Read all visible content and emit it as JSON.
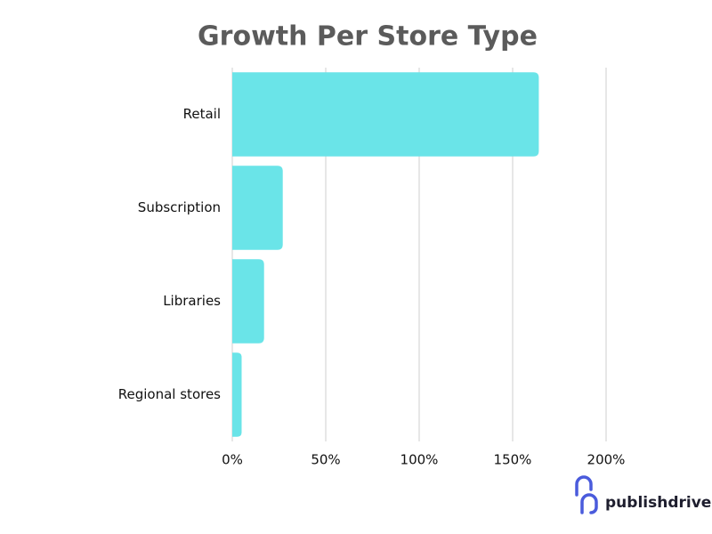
{
  "chart_data": {
    "type": "bar",
    "orientation": "horizontal",
    "title": "Growth Per Store Type",
    "categories": [
      "Retail",
      "Subscription",
      "Libraries",
      "Regional stores"
    ],
    "values": [
      164,
      27,
      17,
      5
    ],
    "color": "#6ae4e8",
    "xlim": [
      0,
      200
    ],
    "xticks": [
      {
        "value": 0,
        "label": "0%"
      },
      {
        "value": 50,
        "label": "50%"
      },
      {
        "value": 100,
        "label": "100%"
      },
      {
        "value": 150,
        "label": "150%"
      },
      {
        "value": 200,
        "label": "200%"
      }
    ],
    "grid": true
  },
  "logo": "publishdrive"
}
